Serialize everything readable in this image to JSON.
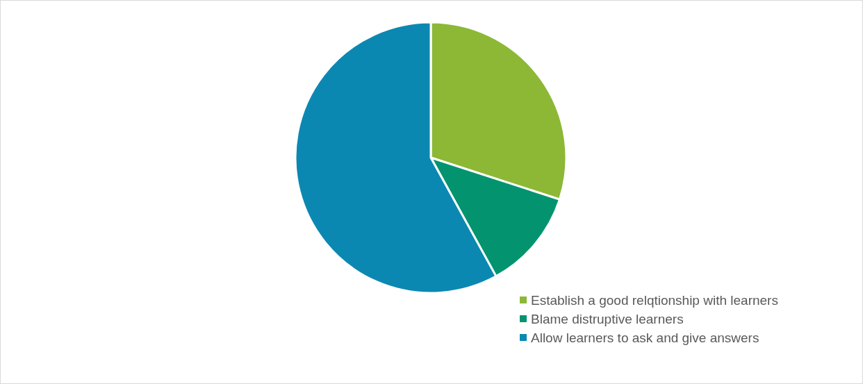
{
  "chart_data": {
    "type": "pie",
    "categories": [
      "Establish a good relqtionship with learners",
      "Blame distruptive learners",
      "Allow learners to ask and give answers"
    ],
    "values": [
      30,
      12,
      58
    ],
    "colors": [
      "#8cb836",
      "#03946f",
      "#0b88b2"
    ],
    "legend": "bottom right"
  }
}
